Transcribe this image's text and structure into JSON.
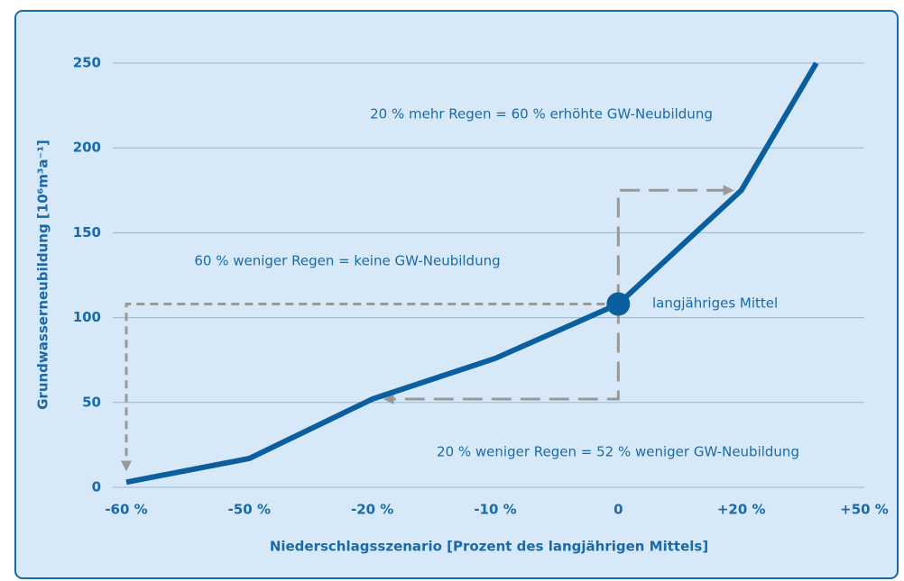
{
  "chart_data": {
    "type": "line",
    "x_label": "Niederschlagsszenario [Prozent des langjährigen Mittels]",
    "y_label": "Grundwasserneubildung [10⁶m³a⁻¹]",
    "xticks": [
      {
        "value": 0,
        "label": "-60 %"
      },
      {
        "value": 1,
        "label": "-50 %"
      },
      {
        "value": 2,
        "label": "-20 %"
      },
      {
        "value": 3,
        "label": "-10 %"
      },
      {
        "value": 4,
        "label": "0"
      },
      {
        "value": 5,
        "label": "+20 %"
      },
      {
        "value": 6,
        "label": "+50 %"
      }
    ],
    "xlim": [
      -0.11,
      6
    ],
    "ylim": [
      0,
      250
    ],
    "yticks": [
      0,
      50,
      100,
      150,
      200,
      250
    ],
    "grid": true,
    "series": [
      {
        "name": null,
        "color": "#0b5f9e",
        "x": [
          0,
          1,
          2,
          3,
          4,
          5,
          5.61
        ],
        "values": [
          3,
          17,
          52,
          76,
          108,
          175,
          250
        ]
      }
    ],
    "annotations": [
      {
        "text": "20 % mehr Regen = 60 % erhöhte GW-Neubildung"
      },
      {
        "text": "60 % weniger Regen = keine GW-Neubildung"
      },
      {
        "text": "langjähriges Mittel"
      },
      {
        "text": "20 % weniger Regen = 52 % weniger GW-Neubildung"
      }
    ]
  }
}
